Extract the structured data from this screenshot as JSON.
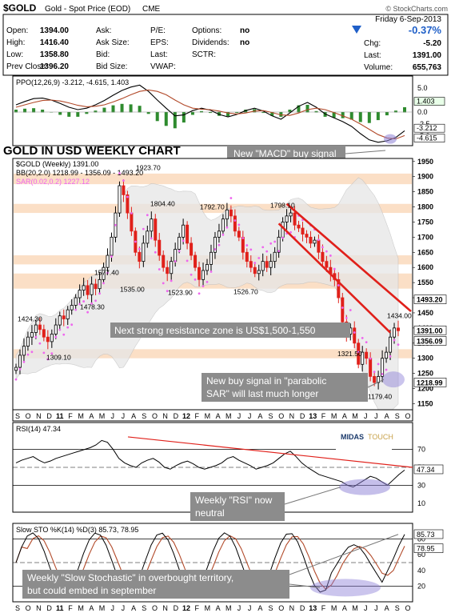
{
  "header": {
    "symbol": "$GOLD",
    "description": "Gold - Spot Price (EOD)",
    "exchange": "CME",
    "source": "© StockCharts.com",
    "date": "Friday   6-Sep-2013",
    "change_pct": "-0.37%",
    "fields": [
      {
        "label": "Open:",
        "value": "1394.00"
      },
      {
        "label": "High:",
        "value": "1416.40"
      },
      {
        "label": "Low:",
        "value": "1358.80"
      },
      {
        "label": "Prev Close:",
        "value": "1396.20"
      },
      {
        "label": "Ask:",
        "value": ""
      },
      {
        "label": "Ask Size:",
        "value": ""
      },
      {
        "label": "Bid:",
        "value": ""
      },
      {
        "label": "Bid Size:",
        "value": ""
      },
      {
        "label": "P/E:",
        "value": ""
      },
      {
        "label": "EPS:",
        "value": ""
      },
      {
        "label": "Last:",
        "value": ""
      },
      {
        "label": "VWAP:",
        "value": ""
      },
      {
        "label": "Options:",
        "value": "no"
      },
      {
        "label": "Dividends:",
        "value": "no"
      },
      {
        "label": "SCTR:",
        "value": ""
      },
      {
        "label": "Chg:",
        "value": "-5.20"
      },
      {
        "label": "Last:",
        "value": "1391.00"
      },
      {
        "label": "Volume:",
        "value": "655,763"
      }
    ]
  },
  "colors": {
    "up": "#000000",
    "down": "#e0201a",
    "sar": "#ee66ee",
    "bb": "#cccccc",
    "zone": "#fbdcc0",
    "annotation_bg": "#8c8c8c",
    "macd_hist": "#2e8b2e",
    "highlight": "#8c7fd6"
  },
  "title_text": "GOLD IN USD WEEKLY CHART",
  "annotations": {
    "macd": "New \"MACD\" buy signal",
    "resistance": "Next strong resistance zone is US$1,500-1,550",
    "sar_line1": "New buy signal in \"parabolic",
    "sar_line2": "SAR\" will last much longer",
    "rsi_line1": "Weekly \"RSI\" now",
    "rsi_line2": "neutral",
    "sto_line1": "Weekly \"Slow Stochastic\" in overbought territory,",
    "sto_line2": "but could embed in september"
  },
  "logo": {
    "text1": "MIDAS",
    "text2": "TOUCH"
  },
  "chart_data": {
    "type": "candlestick",
    "title": "$GOLD (Weekly) 1391.00",
    "indicators_legend": [
      "BB(20,2.0) 1218.99 - 1356.09 - 1493.20",
      "SAR(0.02,0.2) 1227.12"
    ],
    "x_axis_labels": [
      "S",
      "O",
      "N",
      "D",
      "11",
      "F",
      "M",
      "A",
      "M",
      "J",
      "J",
      "A",
      "S",
      "O",
      "N",
      "D",
      "12",
      "F",
      "M",
      "A",
      "M",
      "J",
      "J",
      "A",
      "S",
      "O",
      "N",
      "D",
      "13",
      "F",
      "M",
      "A",
      "M",
      "J",
      "J",
      "A",
      "S",
      "O"
    ],
    "price_axis": {
      "ylim": [
        1130,
        1960
      ],
      "ticks": [
        1150,
        1200,
        1250,
        1300,
        1350,
        1400,
        1450,
        1500,
        1550,
        1600,
        1650,
        1700,
        1750,
        1800,
        1850,
        1900,
        1950
      ]
    },
    "resistance_zones": [
      [
        1875,
        1910
      ],
      [
        1780,
        1810
      ],
      [
        1610,
        1640
      ],
      [
        1530,
        1580
      ],
      [
        1300,
        1330
      ]
    ],
    "price_labels": [
      {
        "text": "1424.30",
        "value": 1424.3
      },
      {
        "text": "1309.10",
        "value": 1309.1
      },
      {
        "text": "1478.30",
        "value": 1478.3
      },
      {
        "text": "1577.40",
        "value": 1577.4
      },
      {
        "text": "1923.70",
        "value": 1923.7
      },
      {
        "text": "1535.00",
        "value": 1535.0
      },
      {
        "text": "1804.40",
        "value": 1804.4
      },
      {
        "text": "1523.90",
        "value": 1523.9
      },
      {
        "text": "1792.70",
        "value": 1792.7
      },
      {
        "text": "1526.70",
        "value": 1526.7
      },
      {
        "text": "1798.10",
        "value": 1798.1
      },
      {
        "text": "1321.50",
        "value": 1321.5
      },
      {
        "text": "1179.40",
        "value": 1179.4
      },
      {
        "text": "1434.00",
        "value": 1434.0
      }
    ],
    "right_axis_values": [
      "1493.20",
      "1391.00",
      "1356.09",
      "1218.99"
    ],
    "trend_channel": {
      "upper": [
        [
          1790,
          1880
        ],
        [
          1500,
          1470
        ]
      ],
      "lower": [
        [
          1740,
          1770
        ],
        [
          1380,
          1430
        ]
      ]
    },
    "macd": {
      "label": "PPO(12,26,9) -3.212, -4.615, 1.403",
      "ylim": [
        -7,
        7.5
      ],
      "ticks": [
        "5.0",
        "2.5",
        "0.0",
        "-2.5",
        "-5.0"
      ],
      "right_values": [
        "1.403",
        "-3.212",
        "-4.615"
      ]
    },
    "rsi": {
      "label": "RSI(14) 47.34",
      "ylim": [
        0,
        100
      ],
      "ticks": [
        "70",
        "50",
        "30",
        "10"
      ],
      "levels": [
        70,
        30
      ],
      "right_value": "47.34"
    },
    "stochastic": {
      "label": "Slow STO %K(14) %D(3) 85.73, 78.95",
      "ylim": [
        0,
        100
      ],
      "ticks": [
        "80",
        "60",
        "40",
        "20"
      ],
      "levels": [
        80,
        20
      ],
      "right_values": [
        "85.73",
        "78.95"
      ]
    }
  }
}
